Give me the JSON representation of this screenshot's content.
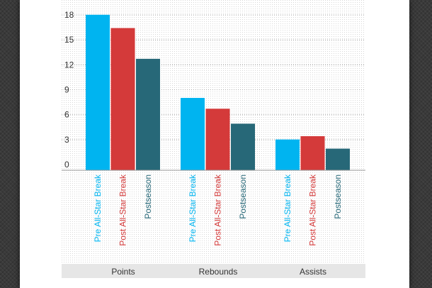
{
  "chart_data": {
    "type": "bar",
    "categories": [
      "Points",
      "Rebounds",
      "Assists"
    ],
    "series": [
      {
        "name": "Pre All-Star Break",
        "color": "#00b4f0",
        "values": [
          18.7,
          8.7,
          3.7
        ]
      },
      {
        "name": "Post All-Star Break",
        "color": "#d43a3a",
        "values": [
          17.1,
          7.4,
          4.1
        ]
      },
      {
        "name": "Postseason",
        "color": "#276878",
        "values": [
          13.4,
          5.6,
          2.6
        ]
      }
    ],
    "yticks": [
      "18",
      "15",
      "12",
      "9",
      "6",
      "3",
      "0"
    ],
    "ytick_values": [
      18,
      15,
      12,
      9,
      6,
      3,
      0
    ],
    "ylim": [
      0,
      20
    ],
    "grid": true,
    "title": "",
    "xlabel": "",
    "ylabel": ""
  }
}
